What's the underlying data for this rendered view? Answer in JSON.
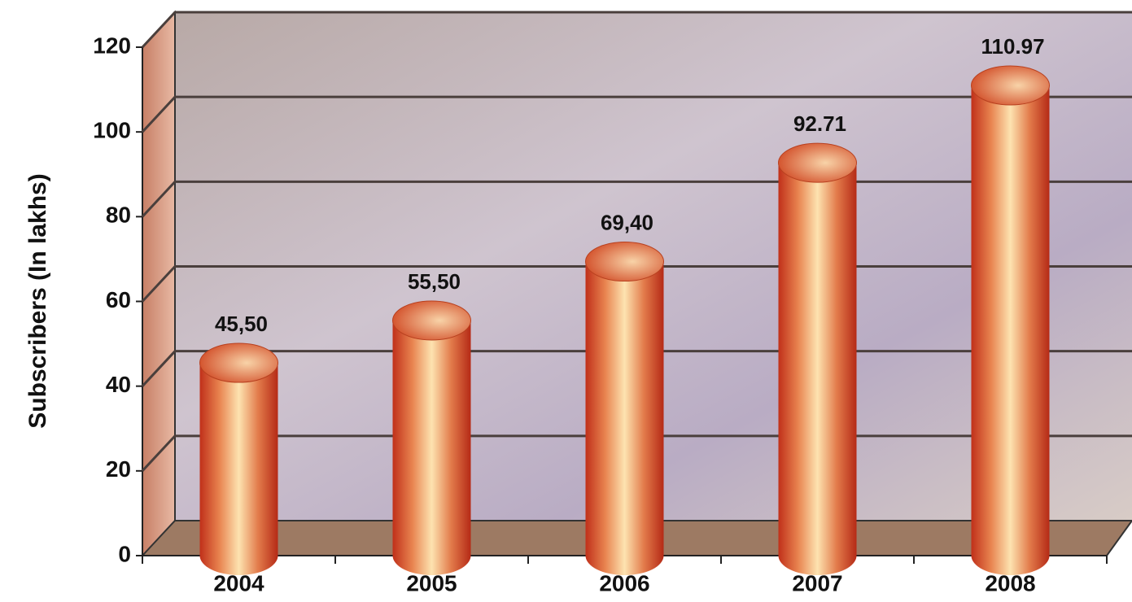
{
  "chart_data": {
    "type": "bar",
    "y_label": "Subscribers (In lakhs)",
    "categories": [
      "2004",
      "2005",
      "2006",
      "2007",
      "2008"
    ],
    "values": [
      45.5,
      55.5,
      69.4,
      92.71,
      110.97
    ],
    "value_labels": [
      "45,50",
      "55,50",
      "69,40",
      "92.71",
      "110.97"
    ],
    "color": "#d9502a",
    "ylim": [
      0,
      120
    ],
    "yticks": [
      0,
      20,
      40,
      60,
      80,
      100,
      120
    ],
    "grid": true
  }
}
